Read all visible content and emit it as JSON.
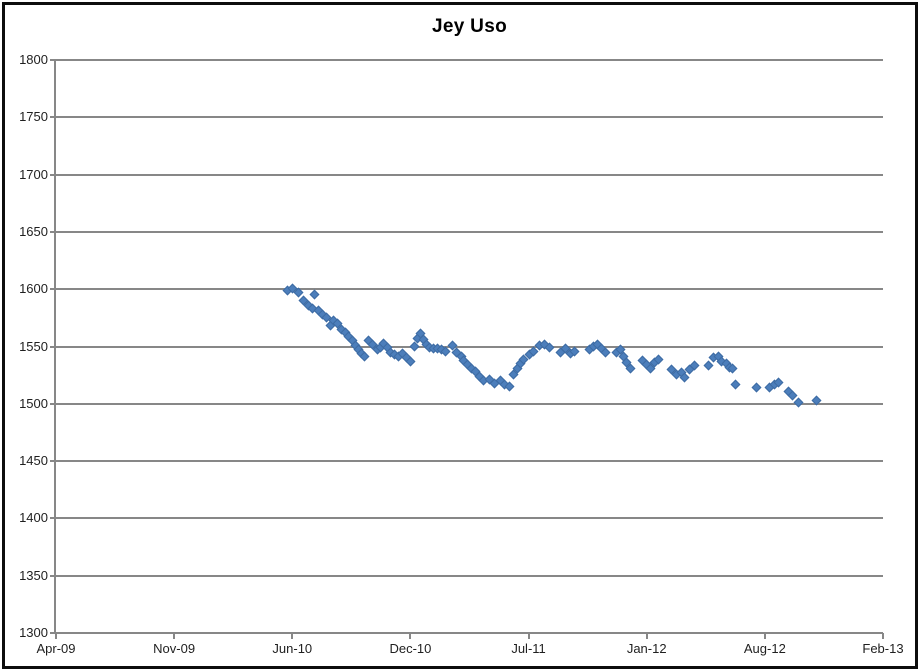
{
  "chart_data": {
    "type": "scatter",
    "title": "Jey Uso",
    "xlabel": "",
    "ylabel": "",
    "ylim": [
      1300,
      1800
    ],
    "ytick_step": 50,
    "yticks": [
      1800,
      1750,
      1700,
      1650,
      1600,
      1550,
      1500,
      1450,
      1400,
      1350,
      1300
    ],
    "xticks": [
      {
        "label": "Apr-09",
        "year": 2009.292
      },
      {
        "label": "Nov-09",
        "year": 2009.875
      },
      {
        "label": "Jun-10",
        "year": 2010.458
      },
      {
        "label": "Dec-10",
        "year": 2010.958
      },
      {
        "label": "Jul-11",
        "year": 2011.542
      },
      {
        "label": "Jan-12",
        "year": 2012.042
      },
      {
        "label": "Aug-12",
        "year": 2012.625
      },
      {
        "label": "Feb-13",
        "year": 2013.125
      }
    ],
    "grid": "horizontal-only",
    "legend_position": "none",
    "marker": "diamond",
    "marker_color": "#4c7ebb",
    "gridline_color": "#878787",
    "points": [
      [
        2010.435,
        1599
      ],
      [
        2010.459,
        1601
      ],
      [
        2010.485,
        1597
      ],
      [
        2010.506,
        1590
      ],
      [
        2010.527,
        1586
      ],
      [
        2010.552,
        1595
      ],
      [
        2010.544,
        1583
      ],
      [
        2010.569,
        1581
      ],
      [
        2010.586,
        1578
      ],
      [
        2010.603,
        1575
      ],
      [
        2010.62,
        1568
      ],
      [
        2010.633,
        1573
      ],
      [
        2010.65,
        1570
      ],
      [
        2010.667,
        1565
      ],
      [
        2010.684,
        1562
      ],
      [
        2010.697,
        1559
      ],
      [
        2010.714,
        1555
      ],
      [
        2010.726,
        1551
      ],
      [
        2010.739,
        1547
      ],
      [
        2010.752,
        1544
      ],
      [
        2010.765,
        1541
      ],
      [
        2010.782,
        1555
      ],
      [
        2010.798,
        1552
      ],
      [
        2010.82,
        1547
      ],
      [
        2010.832,
        1549
      ],
      [
        2010.845,
        1553
      ],
      [
        2010.862,
        1549
      ],
      [
        2010.875,
        1545
      ],
      [
        2010.892,
        1543
      ],
      [
        2010.909,
        1541
      ],
      [
        2010.926,
        1544
      ],
      [
        2010.943,
        1540
      ],
      [
        2010.96,
        1537
      ],
      [
        2010.98,
        1550
      ],
      [
        2010.995,
        1557
      ],
      [
        2011.009,
        1561
      ],
      [
        2011.024,
        1556
      ],
      [
        2011.039,
        1552
      ],
      [
        2011.054,
        1549
      ],
      [
        2011.074,
        1548
      ],
      [
        2011.094,
        1548
      ],
      [
        2011.113,
        1547
      ],
      [
        2011.133,
        1546
      ],
      [
        2011.168,
        1551
      ],
      [
        2011.188,
        1545
      ],
      [
        2011.208,
        1541
      ],
      [
        2011.222,
        1538
      ],
      [
        2011.242,
        1534
      ],
      [
        2011.262,
        1531
      ],
      [
        2011.282,
        1528
      ],
      [
        2011.301,
        1524
      ],
      [
        2011.321,
        1520
      ],
      [
        2011.351,
        1521
      ],
      [
        2011.376,
        1518
      ],
      [
        2011.405,
        1520
      ],
      [
        2011.425,
        1517
      ],
      [
        2011.45,
        1515
      ],
      [
        2011.469,
        1526
      ],
      [
        2011.489,
        1531
      ],
      [
        2011.504,
        1535
      ],
      [
        2011.519,
        1539
      ],
      [
        2011.544,
        1543
      ],
      [
        2011.563,
        1546
      ],
      [
        2011.587,
        1551
      ],
      [
        2011.608,
        1552
      ],
      [
        2011.629,
        1549
      ],
      [
        2011.676,
        1545
      ],
      [
        2011.697,
        1548
      ],
      [
        2011.718,
        1544
      ],
      [
        2011.735,
        1546
      ],
      [
        2011.799,
        1547
      ],
      [
        2011.816,
        1550
      ],
      [
        2011.833,
        1552
      ],
      [
        2011.85,
        1548
      ],
      [
        2011.867,
        1545
      ],
      [
        2011.914,
        1545
      ],
      [
        2011.93,
        1547
      ],
      [
        2011.943,
        1541
      ],
      [
        2011.956,
        1536
      ],
      [
        2011.973,
        1531
      ],
      [
        2012.024,
        1538
      ],
      [
        2012.041,
        1534
      ],
      [
        2012.06,
        1531
      ],
      [
        2012.08,
        1536
      ],
      [
        2012.1,
        1539
      ],
      [
        2012.164,
        1530
      ],
      [
        2012.189,
        1526
      ],
      [
        2012.213,
        1527
      ],
      [
        2012.228,
        1523
      ],
      [
        2012.253,
        1530
      ],
      [
        2012.278,
        1533
      ],
      [
        2012.347,
        1533
      ],
      [
        2012.372,
        1540
      ],
      [
        2012.397,
        1541
      ],
      [
        2012.412,
        1537
      ],
      [
        2012.436,
        1535
      ],
      [
        2012.451,
        1532
      ],
      [
        2012.466,
        1531
      ],
      [
        2012.481,
        1517
      ],
      [
        2012.585,
        1514
      ],
      [
        2012.646,
        1514
      ],
      [
        2012.667,
        1517
      ],
      [
        2012.684,
        1519
      ],
      [
        2012.726,
        1511
      ],
      [
        2012.743,
        1507
      ],
      [
        2012.769,
        1501
      ],
      [
        2012.845,
        1503
      ]
    ]
  }
}
